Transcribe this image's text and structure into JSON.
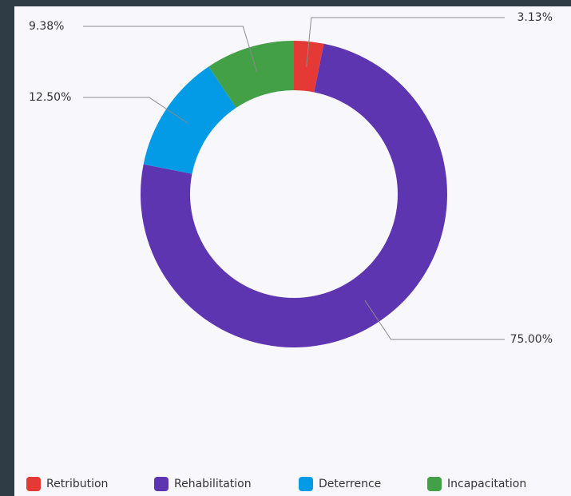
{
  "chart_data": {
    "type": "donut",
    "categories": [
      "Retribution",
      "Rehabilitation",
      "Deterrence",
      "Incapacitation"
    ],
    "values": [
      3.13,
      75.0,
      12.5,
      9.38
    ],
    "value_labels": [
      "3.13%",
      "75.00%",
      "12.50%",
      "9.38%"
    ],
    "colors": [
      "#e53935",
      "#5e35b1",
      "#039be5",
      "#43a047"
    ],
    "legend": "bottom"
  }
}
